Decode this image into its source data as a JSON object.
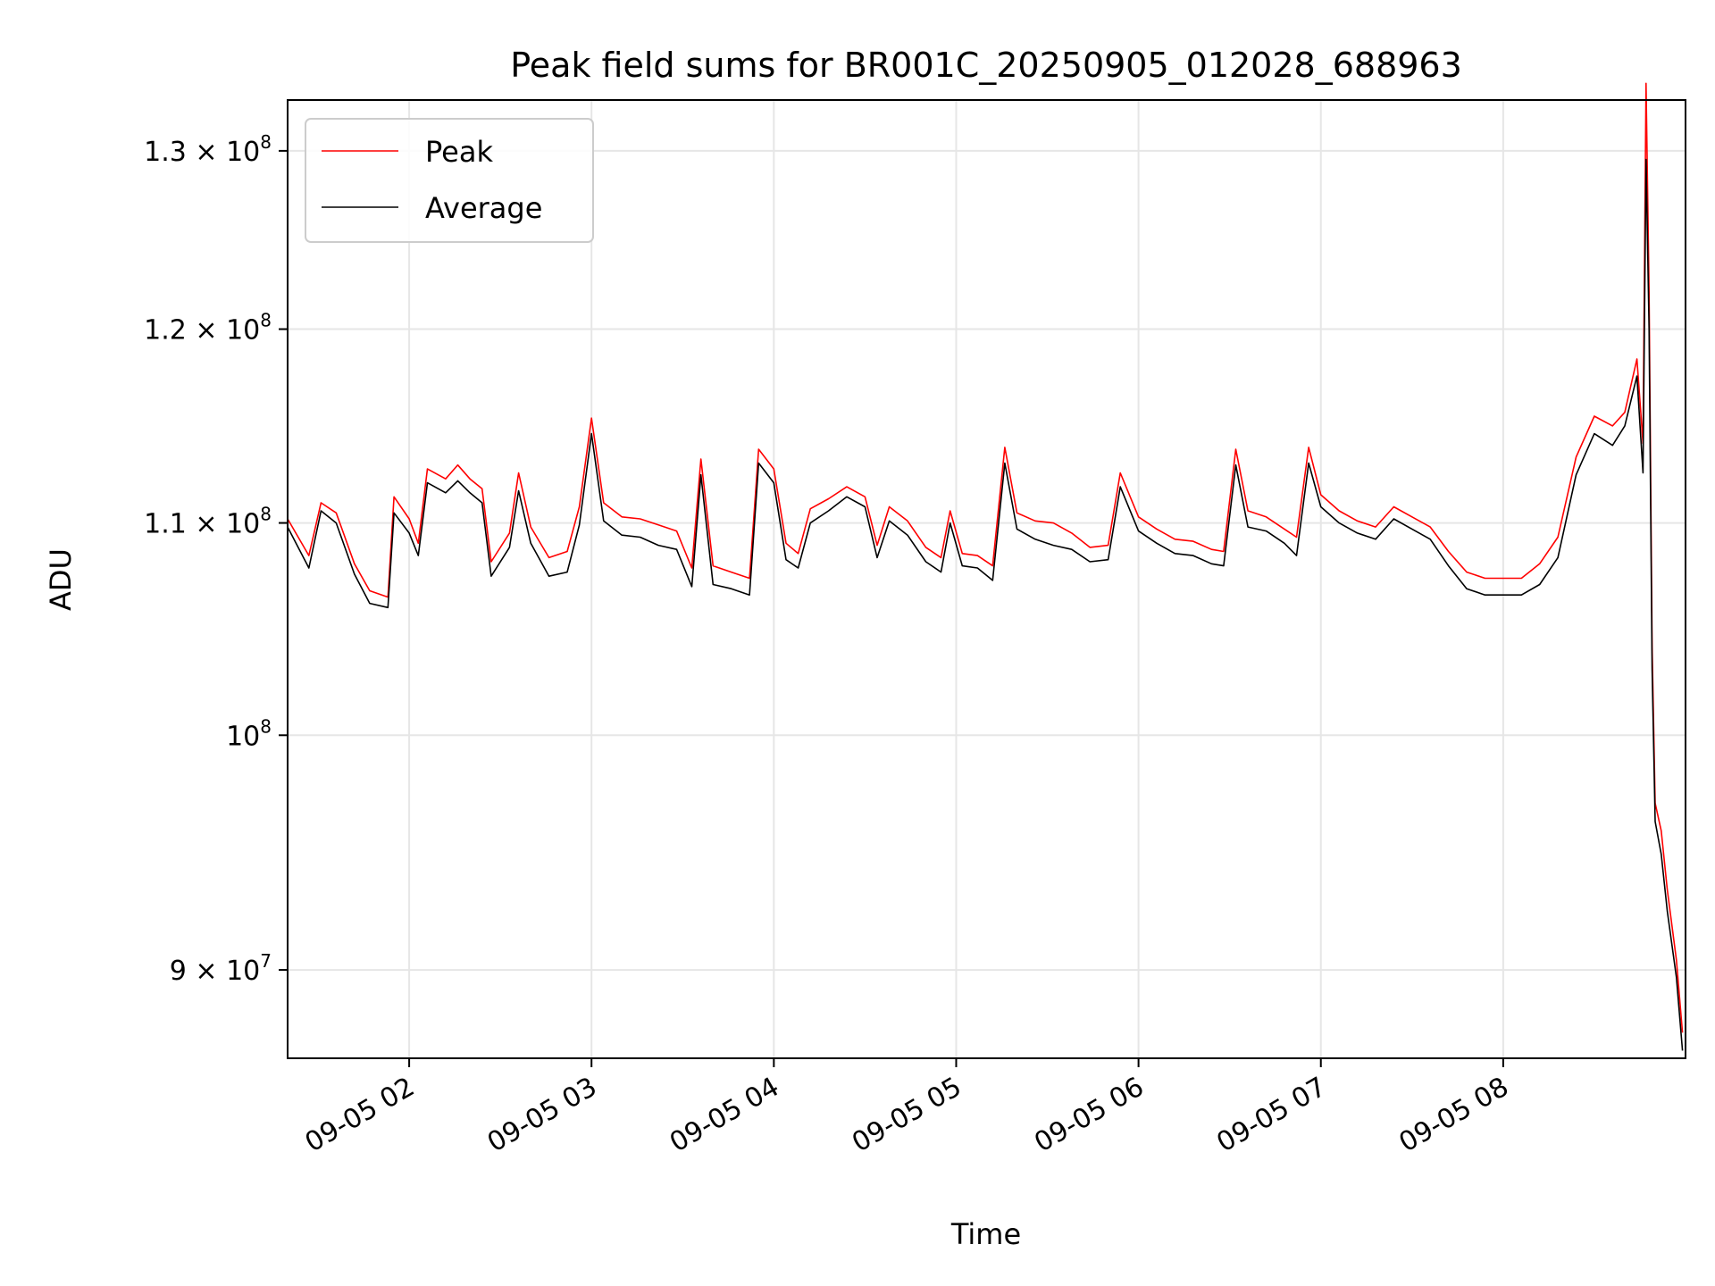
{
  "chart_data": {
    "type": "line",
    "title": "Peak field sums for BR001C_20250905_012028_688963",
    "xlabel": "Time",
    "ylabel": "ADU",
    "yscale": "log",
    "xlim": [
      "09-05 01:20",
      "09-05 09:00"
    ],
    "ylim": [
      86500000,
      133000000
    ],
    "grid": true,
    "legend": "upper-left",
    "x_ticks": [
      "09-05 02",
      "09-05 03",
      "09-05 04",
      "09-05 05",
      "09-05 06",
      "09-05 07",
      "09-05 08"
    ],
    "y_ticks": [
      {
        "value": 90000000,
        "label": "9 × 10",
        "exp": "7"
      },
      {
        "value": 100000000,
        "label": "10",
        "exp": "8"
      },
      {
        "value": 110000000,
        "label": "1.1 × 10",
        "exp": "8"
      },
      {
        "value": 120000000,
        "label": "1.2 × 10",
        "exp": "8"
      },
      {
        "value": 130000000,
        "label": "1.3 × 10",
        "exp": "8"
      }
    ],
    "series": [
      {
        "name": "Peak",
        "color": "#ff0000",
        "points": [
          [
            "09-05 01:20",
            110200000
          ],
          [
            "09-05 01:27",
            108400000
          ],
          [
            "09-05 01:31",
            111000000
          ],
          [
            "09-05 01:36",
            110500000
          ],
          [
            "09-05 01:42",
            108000000
          ],
          [
            "09-05 01:47",
            106700000
          ],
          [
            "09-05 01:53",
            106400000
          ],
          [
            "09-05 01:55",
            111300000
          ],
          [
            "09-05 02:00",
            110200000
          ],
          [
            "09-05 02:03",
            109000000
          ],
          [
            "09-05 02:06",
            112700000
          ],
          [
            "09-05 02:12",
            112200000
          ],
          [
            "09-05 02:16",
            112900000
          ],
          [
            "09-05 02:20",
            112200000
          ],
          [
            "09-05 02:24",
            111700000
          ],
          [
            "09-05 02:27",
            108100000
          ],
          [
            "09-05 02:33",
            109500000
          ],
          [
            "09-05 02:36",
            112500000
          ],
          [
            "09-05 02:40",
            109800000
          ],
          [
            "09-05 02:46",
            108300000
          ],
          [
            "09-05 02:52",
            108600000
          ],
          [
            "09-05 02:56",
            110800000
          ],
          [
            "09-05 03:00",
            115300000
          ],
          [
            "09-05 03:04",
            111000000
          ],
          [
            "09-05 03:10",
            110300000
          ],
          [
            "09-05 03:16",
            110200000
          ],
          [
            "09-05 03:22",
            109900000
          ],
          [
            "09-05 03:28",
            109600000
          ],
          [
            "09-05 03:33",
            107800000
          ],
          [
            "09-05 03:36",
            113200000
          ],
          [
            "09-05 03:40",
            107900000
          ],
          [
            "09-05 03:46",
            107600000
          ],
          [
            "09-05 03:52",
            107300000
          ],
          [
            "09-05 03:55",
            113700000
          ],
          [
            "09-05 04:00",
            112700000
          ],
          [
            "09-05 04:04",
            109000000
          ],
          [
            "09-05 04:08",
            108500000
          ],
          [
            "09-05 04:12",
            110700000
          ],
          [
            "09-05 04:18",
            111200000
          ],
          [
            "09-05 04:24",
            111800000
          ],
          [
            "09-05 04:30",
            111300000
          ],
          [
            "09-05 04:34",
            108900000
          ],
          [
            "09-05 04:38",
            110800000
          ],
          [
            "09-05 04:44",
            110100000
          ],
          [
            "09-05 04:50",
            108800000
          ],
          [
            "09-05 04:55",
            108300000
          ],
          [
            "09-05 04:58",
            110600000
          ],
          [
            "09-05 05:02",
            108500000
          ],
          [
            "09-05 05:07",
            108400000
          ],
          [
            "09-05 05:12",
            107900000
          ],
          [
            "09-05 05:16",
            113800000
          ],
          [
            "09-05 05:20",
            110500000
          ],
          [
            "09-05 05:26",
            110100000
          ],
          [
            "09-05 05:32",
            110000000
          ],
          [
            "09-05 05:38",
            109500000
          ],
          [
            "09-05 05:44",
            108800000
          ],
          [
            "09-05 05:50",
            108900000
          ],
          [
            "09-05 05:54",
            112500000
          ],
          [
            "09-05 06:00",
            110300000
          ],
          [
            "09-05 06:06",
            109700000
          ],
          [
            "09-05 06:12",
            109200000
          ],
          [
            "09-05 06:18",
            109100000
          ],
          [
            "09-05 06:24",
            108700000
          ],
          [
            "09-05 06:28",
            108600000
          ],
          [
            "09-05 06:32",
            113700000
          ],
          [
            "09-05 06:36",
            110600000
          ],
          [
            "09-05 06:42",
            110300000
          ],
          [
            "09-05 06:48",
            109700000
          ],
          [
            "09-05 06:52",
            109300000
          ],
          [
            "09-05 06:56",
            113800000
          ],
          [
            "09-05 07:00",
            111400000
          ],
          [
            "09-05 07:06",
            110600000
          ],
          [
            "09-05 07:12",
            110100000
          ],
          [
            "09-05 07:18",
            109800000
          ],
          [
            "09-05 07:24",
            110800000
          ],
          [
            "09-05 07:30",
            110300000
          ],
          [
            "09-05 07:36",
            109800000
          ],
          [
            "09-05 07:42",
            108600000
          ],
          [
            "09-05 07:48",
            107600000
          ],
          [
            "09-05 07:54",
            107300000
          ],
          [
            "09-05 08:00",
            107300000
          ],
          [
            "09-05 08:06",
            107300000
          ],
          [
            "09-05 08:12",
            108000000
          ],
          [
            "09-05 08:18",
            109300000
          ],
          [
            "09-05 08:24",
            113300000
          ],
          [
            "09-05 08:30",
            115400000
          ],
          [
            "09-05 08:36",
            114900000
          ],
          [
            "09-05 08:40",
            115600000
          ],
          [
            "09-05 08:44",
            118400000
          ],
          [
            "09-05 08:46",
            114000000
          ],
          [
            "09-05 08:47",
            134000000
          ],
          [
            "09-05 08:48",
            122000000
          ],
          [
            "09-05 08:49",
            104000000
          ],
          [
            "09-05 08:50",
            97000000
          ],
          [
            "09-05 08:52",
            95800000
          ],
          [
            "09-05 08:54",
            93300000
          ],
          [
            "09-05 08:57",
            90400000
          ],
          [
            "09-05 08:59",
            87500000
          ]
        ]
      },
      {
        "name": "Average",
        "color": "#000000",
        "points": [
          [
            "09-05 01:20",
            109800000
          ],
          [
            "09-05 01:27",
            107800000
          ],
          [
            "09-05 01:31",
            110600000
          ],
          [
            "09-05 01:36",
            110000000
          ],
          [
            "09-05 01:42",
            107500000
          ],
          [
            "09-05 01:47",
            106100000
          ],
          [
            "09-05 01:53",
            105900000
          ],
          [
            "09-05 01:55",
            110500000
          ],
          [
            "09-05 02:00",
            109500000
          ],
          [
            "09-05 02:03",
            108400000
          ],
          [
            "09-05 02:06",
            112000000
          ],
          [
            "09-05 02:12",
            111500000
          ],
          [
            "09-05 02:16",
            112100000
          ],
          [
            "09-05 02:20",
            111500000
          ],
          [
            "09-05 02:24",
            111000000
          ],
          [
            "09-05 02:27",
            107400000
          ],
          [
            "09-05 02:33",
            108800000
          ],
          [
            "09-05 02:36",
            111600000
          ],
          [
            "09-05 02:40",
            109000000
          ],
          [
            "09-05 02:46",
            107400000
          ],
          [
            "09-05 02:52",
            107600000
          ],
          [
            "09-05 02:56",
            109900000
          ],
          [
            "09-05 03:00",
            114500000
          ],
          [
            "09-05 03:04",
            110100000
          ],
          [
            "09-05 03:10",
            109400000
          ],
          [
            "09-05 03:16",
            109300000
          ],
          [
            "09-05 03:22",
            108900000
          ],
          [
            "09-05 03:28",
            108700000
          ],
          [
            "09-05 03:33",
            106900000
          ],
          [
            "09-05 03:36",
            112400000
          ],
          [
            "09-05 03:40",
            107000000
          ],
          [
            "09-05 03:46",
            106800000
          ],
          [
            "09-05 03:52",
            106500000
          ],
          [
            "09-05 03:55",
            113000000
          ],
          [
            "09-05 04:00",
            112000000
          ],
          [
            "09-05 04:04",
            108200000
          ],
          [
            "09-05 04:08",
            107800000
          ],
          [
            "09-05 04:12",
            110000000
          ],
          [
            "09-05 04:18",
            110600000
          ],
          [
            "09-05 04:24",
            111300000
          ],
          [
            "09-05 04:30",
            110800000
          ],
          [
            "09-05 04:34",
            108300000
          ],
          [
            "09-05 04:38",
            110100000
          ],
          [
            "09-05 04:44",
            109400000
          ],
          [
            "09-05 04:50",
            108100000
          ],
          [
            "09-05 04:55",
            107600000
          ],
          [
            "09-05 04:58",
            110000000
          ],
          [
            "09-05 05:02",
            107900000
          ],
          [
            "09-05 05:07",
            107800000
          ],
          [
            "09-05 05:12",
            107200000
          ],
          [
            "09-05 05:16",
            113000000
          ],
          [
            "09-05 05:20",
            109700000
          ],
          [
            "09-05 05:26",
            109200000
          ],
          [
            "09-05 05:32",
            108900000
          ],
          [
            "09-05 05:38",
            108700000
          ],
          [
            "09-05 05:44",
            108100000
          ],
          [
            "09-05 05:50",
            108200000
          ],
          [
            "09-05 05:54",
            111800000
          ],
          [
            "09-05 06:00",
            109600000
          ],
          [
            "09-05 06:06",
            109000000
          ],
          [
            "09-05 06:12",
            108500000
          ],
          [
            "09-05 06:18",
            108400000
          ],
          [
            "09-05 06:24",
            108000000
          ],
          [
            "09-05 06:28",
            107900000
          ],
          [
            "09-05 06:32",
            112900000
          ],
          [
            "09-05 06:36",
            109800000
          ],
          [
            "09-05 06:42",
            109600000
          ],
          [
            "09-05 06:48",
            109000000
          ],
          [
            "09-05 06:52",
            108400000
          ],
          [
            "09-05 06:56",
            113000000
          ],
          [
            "09-05 07:00",
            110800000
          ],
          [
            "09-05 07:06",
            110000000
          ],
          [
            "09-05 07:12",
            109500000
          ],
          [
            "09-05 07:18",
            109200000
          ],
          [
            "09-05 07:24",
            110200000
          ],
          [
            "09-05 07:30",
            109700000
          ],
          [
            "09-05 07:36",
            109200000
          ],
          [
            "09-05 07:42",
            107900000
          ],
          [
            "09-05 07:48",
            106800000
          ],
          [
            "09-05 07:54",
            106500000
          ],
          [
            "09-05 08:00",
            106500000
          ],
          [
            "09-05 08:06",
            106500000
          ],
          [
            "09-05 08:12",
            107000000
          ],
          [
            "09-05 08:18",
            108300000
          ],
          [
            "09-05 08:24",
            112400000
          ],
          [
            "09-05 08:30",
            114500000
          ],
          [
            "09-05 08:36",
            113900000
          ],
          [
            "09-05 08:40",
            114900000
          ],
          [
            "09-05 08:44",
            117500000
          ],
          [
            "09-05 08:46",
            112500000
          ],
          [
            "09-05 08:47",
            129500000
          ],
          [
            "09-05 08:48",
            120000000
          ],
          [
            "09-05 08:49",
            103000000
          ],
          [
            "09-05 08:50",
            96200000
          ],
          [
            "09-05 08:52",
            94800000
          ],
          [
            "09-05 08:54",
            92400000
          ],
          [
            "09-05 08:57",
            89700000
          ],
          [
            "09-05 08:59",
            86800000
          ]
        ]
      }
    ]
  }
}
